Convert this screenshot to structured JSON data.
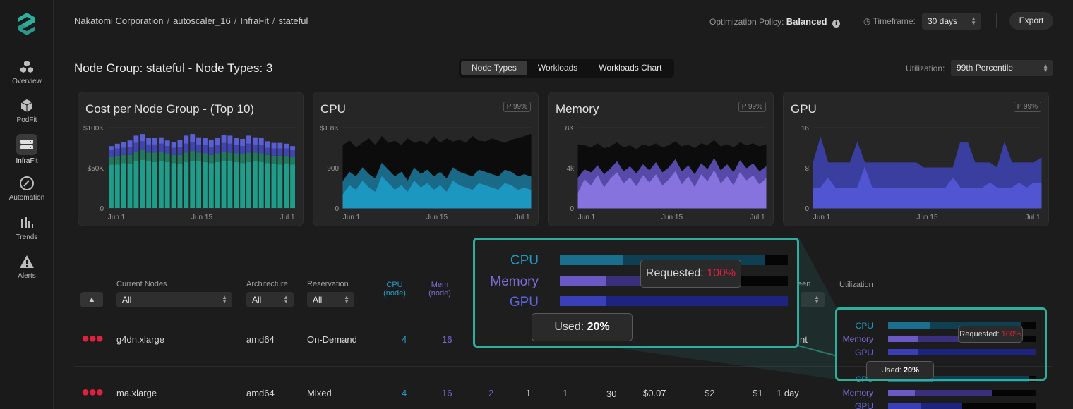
{
  "nav": [
    {
      "label": "Overview",
      "icon": "cubes-icon"
    },
    {
      "label": "PodFit",
      "icon": "cube-icon"
    },
    {
      "label": "InfraFit",
      "icon": "server-icon"
    },
    {
      "label": "Automation",
      "icon": "gauge-icon"
    },
    {
      "label": "Trends",
      "icon": "trends-icon"
    },
    {
      "label": "Alerts",
      "icon": "alert-icon"
    }
  ],
  "breadcrumb": {
    "org": "Nakatomi Corporation",
    "cluster": "autoscaler_16",
    "section": "InfraFit",
    "group": "stateful",
    "sep": "/"
  },
  "header": {
    "policy_label": "Optimization Policy:",
    "policy_value": "Balanced",
    "timeframe_label": "Timeframe:",
    "timeframe_value": "30 days",
    "export_label": "Export"
  },
  "page": {
    "title": "Node Group: stateful - Node Types: 3",
    "tabs": [
      "Node Types",
      "Workloads",
      "Workloads Chart"
    ],
    "utilization_label": "Utilization:",
    "utilization_value": "99th Percentile"
  },
  "chart_data": [
    {
      "type": "bar",
      "title": "Cost per Node Group - (Top 10)",
      "y_ticks": [
        "$100K",
        "$50K",
        "0"
      ],
      "x_ticks": [
        "Jun 1",
        "Jun 15",
        "Jul 1"
      ],
      "ylim": [
        0,
        100000
      ],
      "series_colors": [
        "#1e9e8a",
        "#227a5e",
        "#3f44b0",
        "#5a5fd6"
      ],
      "stack_values": {
        "teal": [
          54,
          54,
          56,
          55,
          58,
          60,
          58,
          57,
          59,
          57,
          56,
          55,
          57,
          59,
          58,
          57,
          56,
          57,
          58,
          58,
          57,
          56,
          57,
          58,
          57,
          56,
          55,
          54,
          55,
          54
        ],
        "green": [
          10,
          11,
          10,
          11,
          12,
          12,
          11,
          12,
          11,
          11,
          10,
          11,
          12,
          12,
          11,
          11,
          10,
          11,
          12,
          11,
          11,
          11,
          12,
          11,
          11,
          10,
          10,
          11,
          10,
          10
        ],
        "blue": [
          8,
          9,
          9,
          10,
          11,
          11,
          10,
          10,
          10,
          9,
          9,
          10,
          11,
          11,
          10,
          10,
          10,
          10,
          11,
          11,
          10,
          10,
          11,
          10,
          10,
          9,
          9,
          9,
          9,
          8
        ],
        "violet": [
          5,
          6,
          7,
          8,
          9,
          9,
          8,
          8,
          8,
          7,
          7,
          9,
          10,
          10,
          9,
          9,
          9,
          9,
          10,
          10,
          9,
          9,
          10,
          9,
          9,
          8,
          7,
          7,
          6,
          5
        ]
      }
    },
    {
      "type": "area",
      "title": "CPU",
      "badge": "P 99%",
      "y_ticks": [
        "$1.8K",
        "900",
        "0"
      ],
      "x_ticks": [
        "Jun 1",
        "Jun 15",
        "Jul 1"
      ],
      "ylim": [
        0,
        1800
      ],
      "series": [
        {
          "color": "#0b0b0b",
          "values": [
            1400,
            1500,
            1350,
            1450,
            1550,
            1400,
            1600,
            1450,
            1500,
            1400,
            1550,
            1450,
            1500,
            1420,
            1600,
            1450,
            1550,
            1480,
            1520,
            1450,
            1600,
            1500,
            1480,
            1550,
            1500,
            1450,
            1520,
            1560,
            1600,
            1650
          ]
        },
        {
          "color": "#1a6e8e",
          "values": [
            600,
            800,
            700,
            900,
            750,
            650,
            1000,
            850,
            700,
            800,
            600,
            900,
            750,
            850,
            700,
            800,
            650,
            900,
            800,
            750,
            700,
            850,
            800,
            750,
            700,
            850,
            800,
            700,
            750,
            700
          ]
        },
        {
          "color": "#1d9ac4",
          "values": [
            300,
            500,
            400,
            600,
            450,
            350,
            700,
            550,
            400,
            500,
            350,
            600,
            450,
            550,
            400,
            500,
            350,
            600,
            500,
            450,
            400,
            550,
            500,
            450,
            400,
            550,
            500,
            400,
            450,
            400
          ]
        }
      ]
    },
    {
      "type": "area",
      "title": "Memory",
      "badge": "P 99%",
      "y_ticks": [
        "8K",
        "4k",
        "0"
      ],
      "x_ticks": [
        "Jun 1",
        "Jun 15",
        "Jul 1"
      ],
      "ylim": [
        0,
        8000
      ],
      "series": [
        {
          "color": "#0b0b0b",
          "values": [
            6300,
            6200,
            6000,
            6400,
            5900,
            6100,
            6500,
            6000,
            6200,
            5800,
            6300,
            6100,
            6400,
            6000,
            6200,
            6600,
            6100,
            6300,
            5900,
            6400,
            6200,
            6700,
            6100,
            6300,
            6000,
            6500,
            6200,
            6400,
            6100,
            6300
          ]
        },
        {
          "color": "#5b4db0",
          "values": [
            3000,
            3800,
            3500,
            4200,
            3300,
            3900,
            4600,
            3600,
            4100,
            3400,
            4300,
            3700,
            4500,
            3500,
            4000,
            4800,
            3600,
            4200,
            3300,
            4400,
            3800,
            4900,
            3700,
            4300,
            3500,
            4700,
            3900,
            4400,
            3600,
            4100
          ]
        },
        {
          "color": "#8a76e0",
          "values": [
            1500,
            2800,
            2200,
            3200,
            2000,
            2900,
            3500,
            2400,
            3000,
            2100,
            3200,
            2500,
            3300,
            2200,
            2800,
            3600,
            2300,
            3100,
            2000,
            3300,
            2600,
            3700,
            2400,
            3100,
            2200,
            3500,
            2700,
            3200,
            2300,
            2900
          ]
        }
      ]
    },
    {
      "type": "area",
      "title": "GPU",
      "badge": "P 99%",
      "y_ticks": [
        "16",
        "8",
        "0"
      ],
      "x_ticks": [
        "Jun 1",
        "Jun 15",
        "Jul 1"
      ],
      "ylim": [
        0,
        16
      ],
      "series": [
        {
          "color": "#3b40a6",
          "values": [
            9,
            14,
            9,
            9,
            9,
            9,
            13,
            9,
            9,
            9,
            9,
            9,
            9,
            9,
            9,
            8,
            8,
            8,
            8,
            8,
            13,
            13,
            9,
            9,
            9,
            8,
            13,
            9,
            9,
            9,
            9,
            10
          ]
        },
        {
          "color": "#5357d4",
          "values": [
            4,
            4,
            6,
            4,
            4,
            4,
            4,
            8,
            4,
            4,
            4,
            4,
            4,
            4,
            4,
            4,
            4,
            4,
            4,
            6,
            4,
            4,
            4,
            4,
            5,
            4,
            4,
            4,
            5,
            4,
            5,
            5
          ]
        }
      ]
    }
  ],
  "table": {
    "headers": {
      "current_nodes": "Current Nodes",
      "architecture": "Architecture",
      "reservation": "Reservation",
      "cpu": "CPU",
      "cpu_sub": "(node)",
      "mem": "Mem",
      "mem_sub": "(node)",
      "green_partial": "een",
      "utilization": "Utilization"
    },
    "filters": {
      "current_nodes": "All",
      "architecture": "All",
      "reservation": "All"
    },
    "rows": [
      {
        "name": "g4dn.xlarge",
        "arch": "amd64",
        "reservation": "On-Demand",
        "cpu": "4",
        "mem": "16",
        "tail": "nt"
      },
      {
        "name": "ma.xlarge",
        "arch": "amd64",
        "reservation": "Mixed",
        "cpu": "4",
        "mem": "16",
        "gpu": "2",
        "c1": "1",
        "c2": "1",
        "c3": "30",
        "cost1": "$0.07",
        "cost2": "$2",
        "cost3": "$1",
        "period": "1 day"
      }
    ]
  },
  "utilization_bars": {
    "labels": [
      "CPU",
      "Memory",
      "GPU"
    ],
    "colors": {
      "cpu": "#1d9ac4",
      "memory": "#7b6cd9",
      "gpu": "#4a4fd0"
    },
    "row1": {
      "cpu_used": 0.28,
      "cpu_req": 0.9,
      "mem_used": 0.2,
      "mem_req": 0.7,
      "gpu_used": 0.2,
      "gpu_req": 1.0
    },
    "row2": {
      "cpu_used": 0.3,
      "cpu_req": 0.95,
      "mem_used": 0.18,
      "mem_req": 0.7,
      "gpu_used": 0.22,
      "gpu_req": 0.5
    }
  },
  "tooltip": {
    "requested_label": "Requested:",
    "requested_value": "100%",
    "used_label": "Used:",
    "used_value": "20%"
  }
}
